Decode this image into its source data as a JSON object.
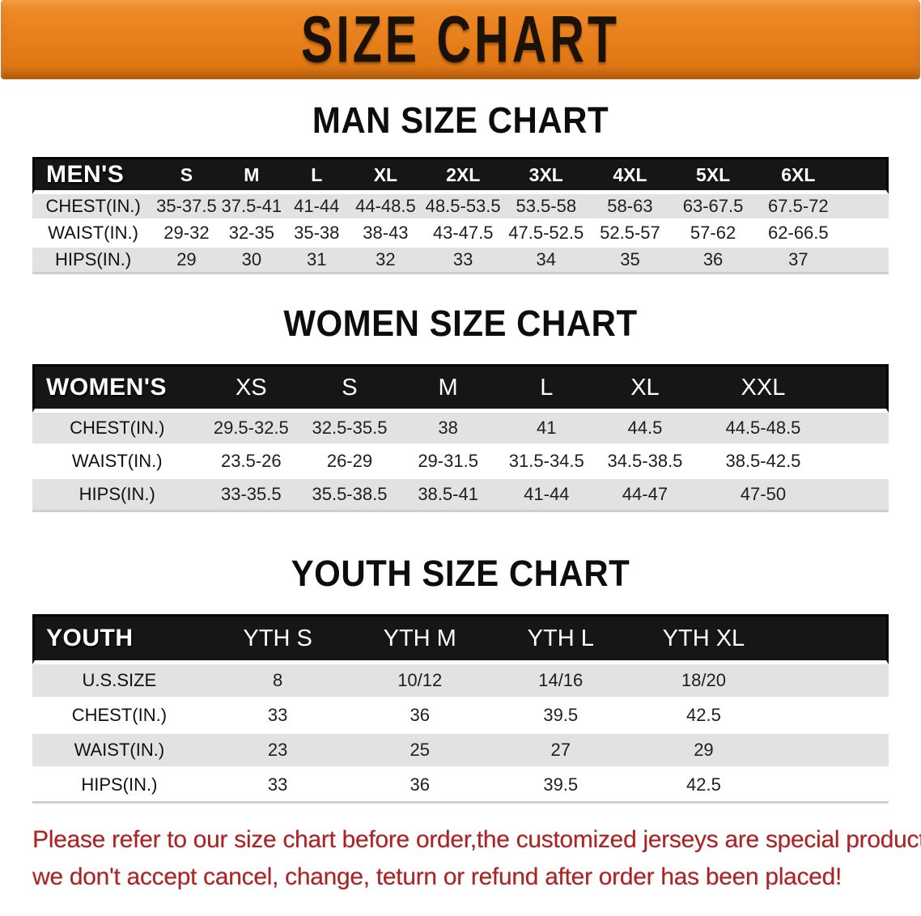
{
  "banner": {
    "title": "SIZE CHART",
    "bg_color": "#e8801c",
    "text_color": "#1a1108"
  },
  "chart_data": [
    {
      "type": "table",
      "title": "MAN SIZE CHART",
      "header_label": "MEN'S",
      "columns": [
        "S",
        "M",
        "L",
        "XL",
        "2XL",
        "3XL",
        "4XL",
        "5XL",
        "6XL"
      ],
      "rows": [
        {
          "label": "CHEST(IN.)",
          "values": [
            "35-37.5",
            "37.5-41",
            "41-44",
            "44-48.5",
            "48.5-53.5",
            "53.5-58",
            "58-63",
            "63-67.5",
            "67.5-72"
          ]
        },
        {
          "label": "WAIST(IN.)",
          "values": [
            "29-32",
            "32-35",
            "35-38",
            "38-43",
            "43-47.5",
            "47.5-52.5",
            "52.5-57",
            "57-62",
            "62-66.5"
          ]
        },
        {
          "label": "HIPS(IN.)",
          "values": [
            "29",
            "30",
            "31",
            "32",
            "33",
            "34",
            "35",
            "36",
            "37"
          ]
        }
      ]
    },
    {
      "type": "table",
      "title": "WOMEN SIZE CHART",
      "header_label": "WOMEN'S",
      "columns": [
        "XS",
        "S",
        "M",
        "L",
        "XL",
        "XXL"
      ],
      "rows": [
        {
          "label": "CHEST(IN.)",
          "values": [
            "29.5-32.5",
            "32.5-35.5",
            "38",
            "41",
            "44.5",
            "44.5-48.5"
          ]
        },
        {
          "label": "WAIST(IN.)",
          "values": [
            "23.5-26",
            "26-29",
            "29-31.5",
            "31.5-34.5",
            "34.5-38.5",
            "38.5-42.5"
          ]
        },
        {
          "label": "HIPS(IN.)",
          "values": [
            "33-35.5",
            "35.5-38.5",
            "38.5-41",
            "41-44",
            "44-47",
            "47-50"
          ]
        }
      ]
    },
    {
      "type": "table",
      "title": "YOUTH SIZE CHART",
      "header_label": "YOUTH",
      "columns": [
        "YTH S",
        "YTH M",
        "YTH L",
        "YTH XL"
      ],
      "rows": [
        {
          "label": "U.S.SIZE",
          "values": [
            "8",
            "10/12",
            "14/16",
            "18/20"
          ]
        },
        {
          "label": "CHEST(IN.)",
          "values": [
            "33",
            "36",
            "39.5",
            "42.5"
          ]
        },
        {
          "label": "WAIST(IN.)",
          "values": [
            "23",
            "25",
            "27",
            "29"
          ]
        },
        {
          "label": "HIPS(IN.)",
          "values": [
            "33",
            "36",
            "39.5",
            "42.5"
          ]
        }
      ]
    }
  ],
  "footer": {
    "line1": "Please refer to our size chart before order,the customized jerseys are special products,",
    "line2": "we don't accept cancel, change, teturn or refund after order has been placed!",
    "text_color": "#ab2424"
  },
  "colors": {
    "banner_orange": "#e8801c",
    "header_bar_black": "#161616",
    "row_shade_grey": "#e2e2e2",
    "notice_red": "#ab2424"
  }
}
